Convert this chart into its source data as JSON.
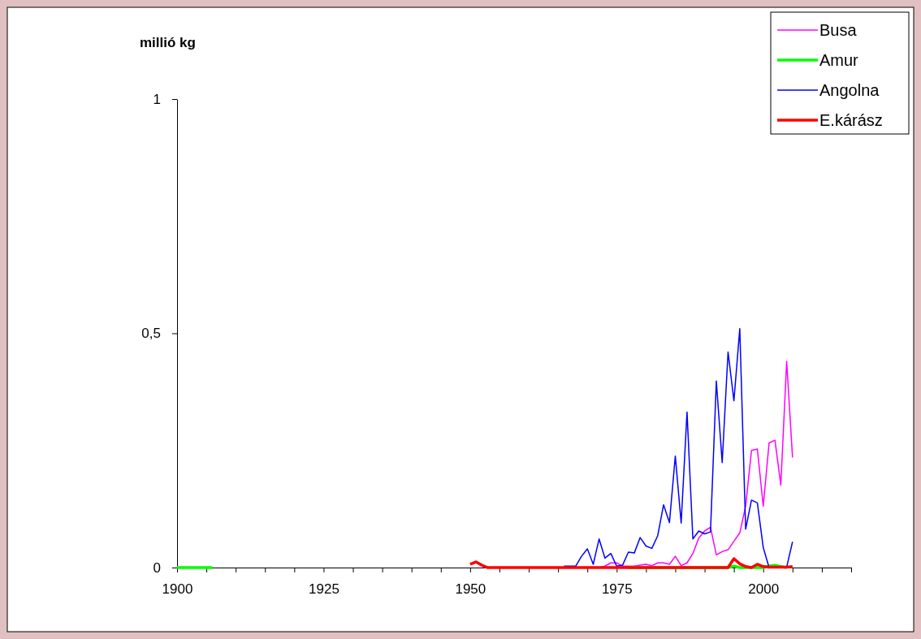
{
  "chart_data": {
    "type": "line",
    "ylabel": "millió kg",
    "xlim": [
      1900,
      2015
    ],
    "ylim": [
      0,
      1
    ],
    "xticks": [
      1900,
      {
        "value": 1905,
        "label": null
      },
      {
        "value": 1910,
        "label": null
      },
      {
        "value": 1915,
        "label": null
      },
      {
        "value": 1920,
        "label": null
      },
      1925,
      {
        "value": 1930,
        "label": null
      },
      {
        "value": 1935,
        "label": null
      },
      {
        "value": 1940,
        "label": null
      },
      {
        "value": 1945,
        "label": null
      },
      1950,
      {
        "value": 1955,
        "label": null
      },
      {
        "value": 1960,
        "label": null
      },
      {
        "value": 1965,
        "label": null
      },
      {
        "value": 1970,
        "label": null
      },
      1975,
      {
        "value": 1980,
        "label": null
      },
      {
        "value": 1985,
        "label": null
      },
      {
        "value": 1990,
        "label": null
      },
      {
        "value": 1995,
        "label": null
      },
      2000,
      {
        "value": 2005,
        "label": null
      },
      {
        "value": 2010,
        "label": null
      },
      {
        "value": 2015,
        "label": null
      }
    ],
    "yticks": [
      0,
      {
        "value": 0.5,
        "label": "0,5"
      },
      1
    ],
    "grid": false,
    "legend": "top right",
    "marker": "none",
    "line_style": "solid",
    "series": [
      {
        "name": "Busa",
        "color": "#ff00ff",
        "x": [
          1972,
          1973,
          1974,
          1975,
          1976,
          1977,
          1978,
          1979,
          1980,
          1981,
          1982,
          1983,
          1984,
          1985,
          1986,
          1987,
          1988,
          1989,
          1990,
          1991,
          1992,
          1993,
          1994,
          1995,
          1996,
          1997,
          1998,
          1999,
          2000,
          2001,
          2002,
          2003,
          2004,
          2005
        ],
        "values": [
          0,
          0.003,
          0.01,
          0.01,
          0.003,
          0.003,
          0.003,
          0.005,
          0.007,
          0.004,
          0.01,
          0.01,
          0.007,
          0.024,
          0.004,
          0.01,
          0.03,
          0.063,
          0.078,
          0.086,
          0.027,
          0.034,
          0.038,
          0.056,
          0.074,
          0.131,
          0.25,
          0.253,
          0.131,
          0.266,
          0.272,
          0.176,
          0.44,
          0.235
        ]
      },
      {
        "name": "Amur",
        "color": "#00ff00",
        "x": [
          1900,
          1901,
          1902,
          1903,
          1904,
          1905,
          1906,
          1940,
          1977,
          1980,
          1985,
          1990,
          1994,
          1995,
          1996,
          2000,
          2001,
          2002,
          2003,
          2004
        ],
        "values": [
          0,
          0,
          0,
          0,
          0,
          0,
          0,
          null,
          0,
          0,
          0,
          0,
          0,
          0.003,
          0,
          0,
          0.003,
          0.005,
          0.002,
          0
        ]
      },
      {
        "name": "Angolna",
        "color": "#0000ff",
        "x": [
          1966,
          1967,
          1968,
          1969,
          1970,
          1971,
          1972,
          1973,
          1974,
          1975,
          1976,
          1977,
          1978,
          1979,
          1980,
          1981,
          1982,
          1983,
          1984,
          1985,
          1986,
          1987,
          1988,
          1989,
          1990,
          1991,
          1992,
          1993,
          1994,
          1995,
          1996,
          1997,
          1998,
          1999,
          2000,
          2001,
          2002,
          2003,
          2004,
          2005
        ],
        "values": [
          0.003,
          0.003,
          0.003,
          0.024,
          0.04,
          0.007,
          0.061,
          0.02,
          0.03,
          0.003,
          0.005,
          0.033,
          0.031,
          0.064,
          0.046,
          0.041,
          0.068,
          0.134,
          0.096,
          0.238,
          0.095,
          0.332,
          0.061,
          0.078,
          0.072,
          0.076,
          0.398,
          0.224,
          0.46,
          0.356,
          0.51,
          0.082,
          0.144,
          0.138,
          0.043,
          0,
          0,
          0,
          0.001,
          0.055
        ]
      },
      {
        "name": "E.kárász",
        "color": "#ff0000",
        "x": [
          1950,
          1951,
          1952,
          1953,
          1960,
          1970,
          1980,
          1990,
          1994,
          1995,
          1996,
          1997,
          1998,
          1999,
          2000,
          2001,
          2002,
          2003,
          2004,
          2005
        ],
        "values": [
          0.007,
          0.012,
          0.005,
          0,
          0,
          0,
          0,
          0,
          0,
          0.019,
          0.008,
          0.002,
          0,
          0.007,
          0.002,
          0.001,
          0.001,
          0.001,
          0.001,
          0.002
        ]
      }
    ]
  }
}
